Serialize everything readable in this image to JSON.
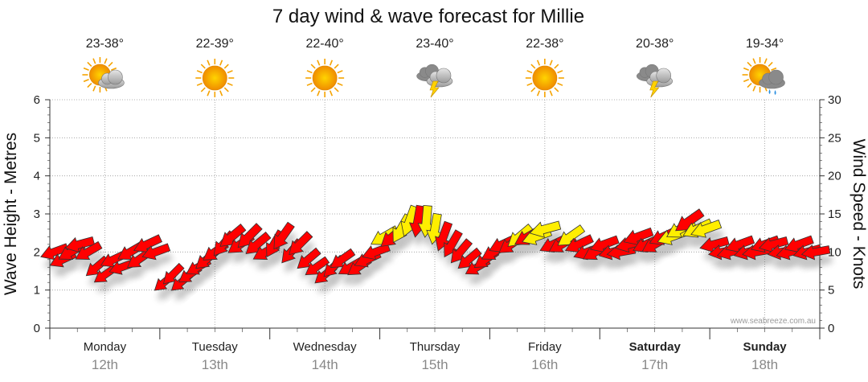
{
  "colors": {
    "strong": "#ff0000",
    "moderate": "#ffee00",
    "light": "#c8c8c8",
    "grid": "#999999",
    "text": "#222222",
    "date": "#888888"
  },
  "chart_data": {
    "type": "wind-wave-forecast",
    "title": "7 day wind & wave forecast for Millie",
    "ylabel_left": "Wave Height - Metres",
    "ylabel_right": "Wind Speed - Knots",
    "ylim_left": [
      0,
      6
    ],
    "ylim_right": [
      0,
      30
    ],
    "yticks_left": [
      "0",
      "1",
      "2",
      "3",
      "4",
      "5",
      "6"
    ],
    "yticks_right": [
      "0",
      "5",
      "10",
      "15",
      "20",
      "25",
      "30"
    ],
    "grid": true,
    "credit": "www.seabreeze.com.au",
    "days": [
      {
        "day": "Monday",
        "date": "12th",
        "temp": "23-38°",
        "icon": "partly-cloudy-icon",
        "weekend": false
      },
      {
        "day": "Tuesday",
        "date": "13th",
        "temp": "22-39°",
        "icon": "sunny-icon",
        "weekend": false
      },
      {
        "day": "Wednesday",
        "date": "14th",
        "temp": "22-40°",
        "icon": "sunny-icon",
        "weekend": false
      },
      {
        "day": "Thursday",
        "date": "15th",
        "temp": "23-40°",
        "icon": "thunderstorm-icon",
        "weekend": false
      },
      {
        "day": "Friday",
        "date": "16th",
        "temp": "22-38°",
        "icon": "sunny-icon",
        "weekend": false
      },
      {
        "day": "Saturday",
        "date": "17th",
        "temp": "20-38°",
        "icon": "thunderstorm-icon",
        "weekend": true
      },
      {
        "day": "Sunday",
        "date": "18th",
        "temp": "19-34°",
        "icon": "partly-cloudy-shower-icon",
        "weekend": true
      }
    ],
    "series": [
      {
        "day": "Monday",
        "wind_knots": [
          10,
          9,
          10,
          11,
          10,
          8,
          7,
          9,
          8,
          10,
          9,
          11,
          10
        ],
        "direction_deg": [
          250,
          245,
          240,
          255,
          240,
          230,
          235,
          245,
          250,
          240,
          235,
          245,
          250
        ]
      },
      {
        "day": "Tuesday",
        "wind_knots": [
          6,
          7,
          6,
          7,
          8,
          9,
          10,
          11,
          12,
          11,
          12,
          11,
          10
        ],
        "direction_deg": [
          230,
          225,
          230,
          235,
          240,
          230,
          235,
          220,
          230,
          235,
          225,
          230,
          240
        ]
      },
      {
        "day": "Wednesday",
        "wind_knots": [
          11,
          12,
          10,
          11,
          9,
          8,
          7,
          8,
          9,
          8,
          8,
          9,
          10
        ],
        "direction_deg": [
          210,
          215,
          220,
          225,
          230,
          235,
          230,
          225,
          235,
          240,
          235,
          245,
          250
        ]
      },
      {
        "day": "Thursday",
        "wind_knots": [
          12,
          12,
          13,
          14,
          14,
          14,
          13,
          12,
          11,
          10,
          9,
          8,
          9
        ],
        "direction_deg": [
          240,
          230,
          210,
          200,
          190,
          185,
          190,
          200,
          210,
          220,
          230,
          240,
          235
        ]
      },
      {
        "day": "Friday",
        "wind_knots": [
          10,
          11,
          11,
          12,
          12,
          12,
          13,
          11,
          11,
          12,
          11,
          10,
          10
        ],
        "direction_deg": [
          240,
          245,
          235,
          230,
          240,
          250,
          255,
          245,
          240,
          235,
          245,
          250,
          240
        ]
      },
      {
        "day": "Saturday",
        "wind_knots": [
          11,
          10,
          10,
          11,
          12,
          11,
          11,
          12,
          12,
          13,
          14,
          13,
          13
        ],
        "direction_deg": [
          250,
          255,
          260,
          255,
          250,
          245,
          240,
          245,
          250,
          240,
          235,
          245,
          250
        ]
      },
      {
        "day": "Sunday",
        "wind_knots": [
          11,
          10,
          10,
          11,
          10,
          10,
          11,
          11,
          10,
          10,
          11,
          10,
          10
        ],
        "direction_deg": [
          255,
          260,
          255,
          250,
          255,
          260,
          250,
          255,
          260,
          255,
          250,
          255,
          260
        ]
      }
    ]
  }
}
